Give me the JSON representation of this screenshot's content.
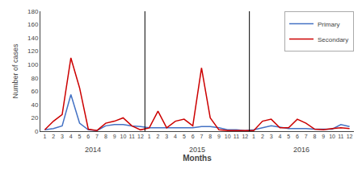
{
  "chart_data": {
    "type": "line",
    "categories": [
      "1",
      "2",
      "3",
      "4",
      "5",
      "6",
      "7",
      "8",
      "9",
      "10",
      "11",
      "12",
      "1",
      "2",
      "3",
      "4",
      "5",
      "6",
      "7",
      "8",
      "9",
      "10",
      "11",
      "12",
      "1",
      "2",
      "3",
      "4",
      "5",
      "6",
      "7",
      "8",
      "9",
      "10",
      "11",
      "12"
    ],
    "series": [
      {
        "name": "Primary",
        "color": "#4472c4",
        "values": [
          2,
          4,
          8,
          55,
          12,
          2,
          1,
          8,
          10,
          10,
          8,
          7,
          5,
          5,
          5,
          5,
          5,
          5,
          7,
          7,
          5,
          2,
          2,
          1,
          2,
          5,
          8,
          6,
          4,
          4,
          4,
          3,
          3,
          3,
          10,
          7
        ]
      },
      {
        "name": "Secondary",
        "color": "#cc0000",
        "values": [
          2,
          15,
          25,
          110,
          65,
          3,
          1,
          12,
          15,
          20,
          8,
          2,
          5,
          30,
          5,
          15,
          18,
          8,
          95,
          20,
          2,
          1,
          1,
          1,
          1,
          15,
          18,
          5,
          5,
          18,
          12,
          3,
          2,
          4,
          5,
          4
        ]
      }
    ],
    "xlabel": "Months",
    "ylabel": "Number of cases",
    "annotations": [
      "2014",
      "2015",
      "2016"
    ],
    "ylim": [
      0,
      180
    ],
    "yticks": [
      0,
      20,
      40,
      60,
      80,
      100,
      120,
      140,
      160,
      180
    ],
    "grid": false,
    "legend": "upper right"
  }
}
